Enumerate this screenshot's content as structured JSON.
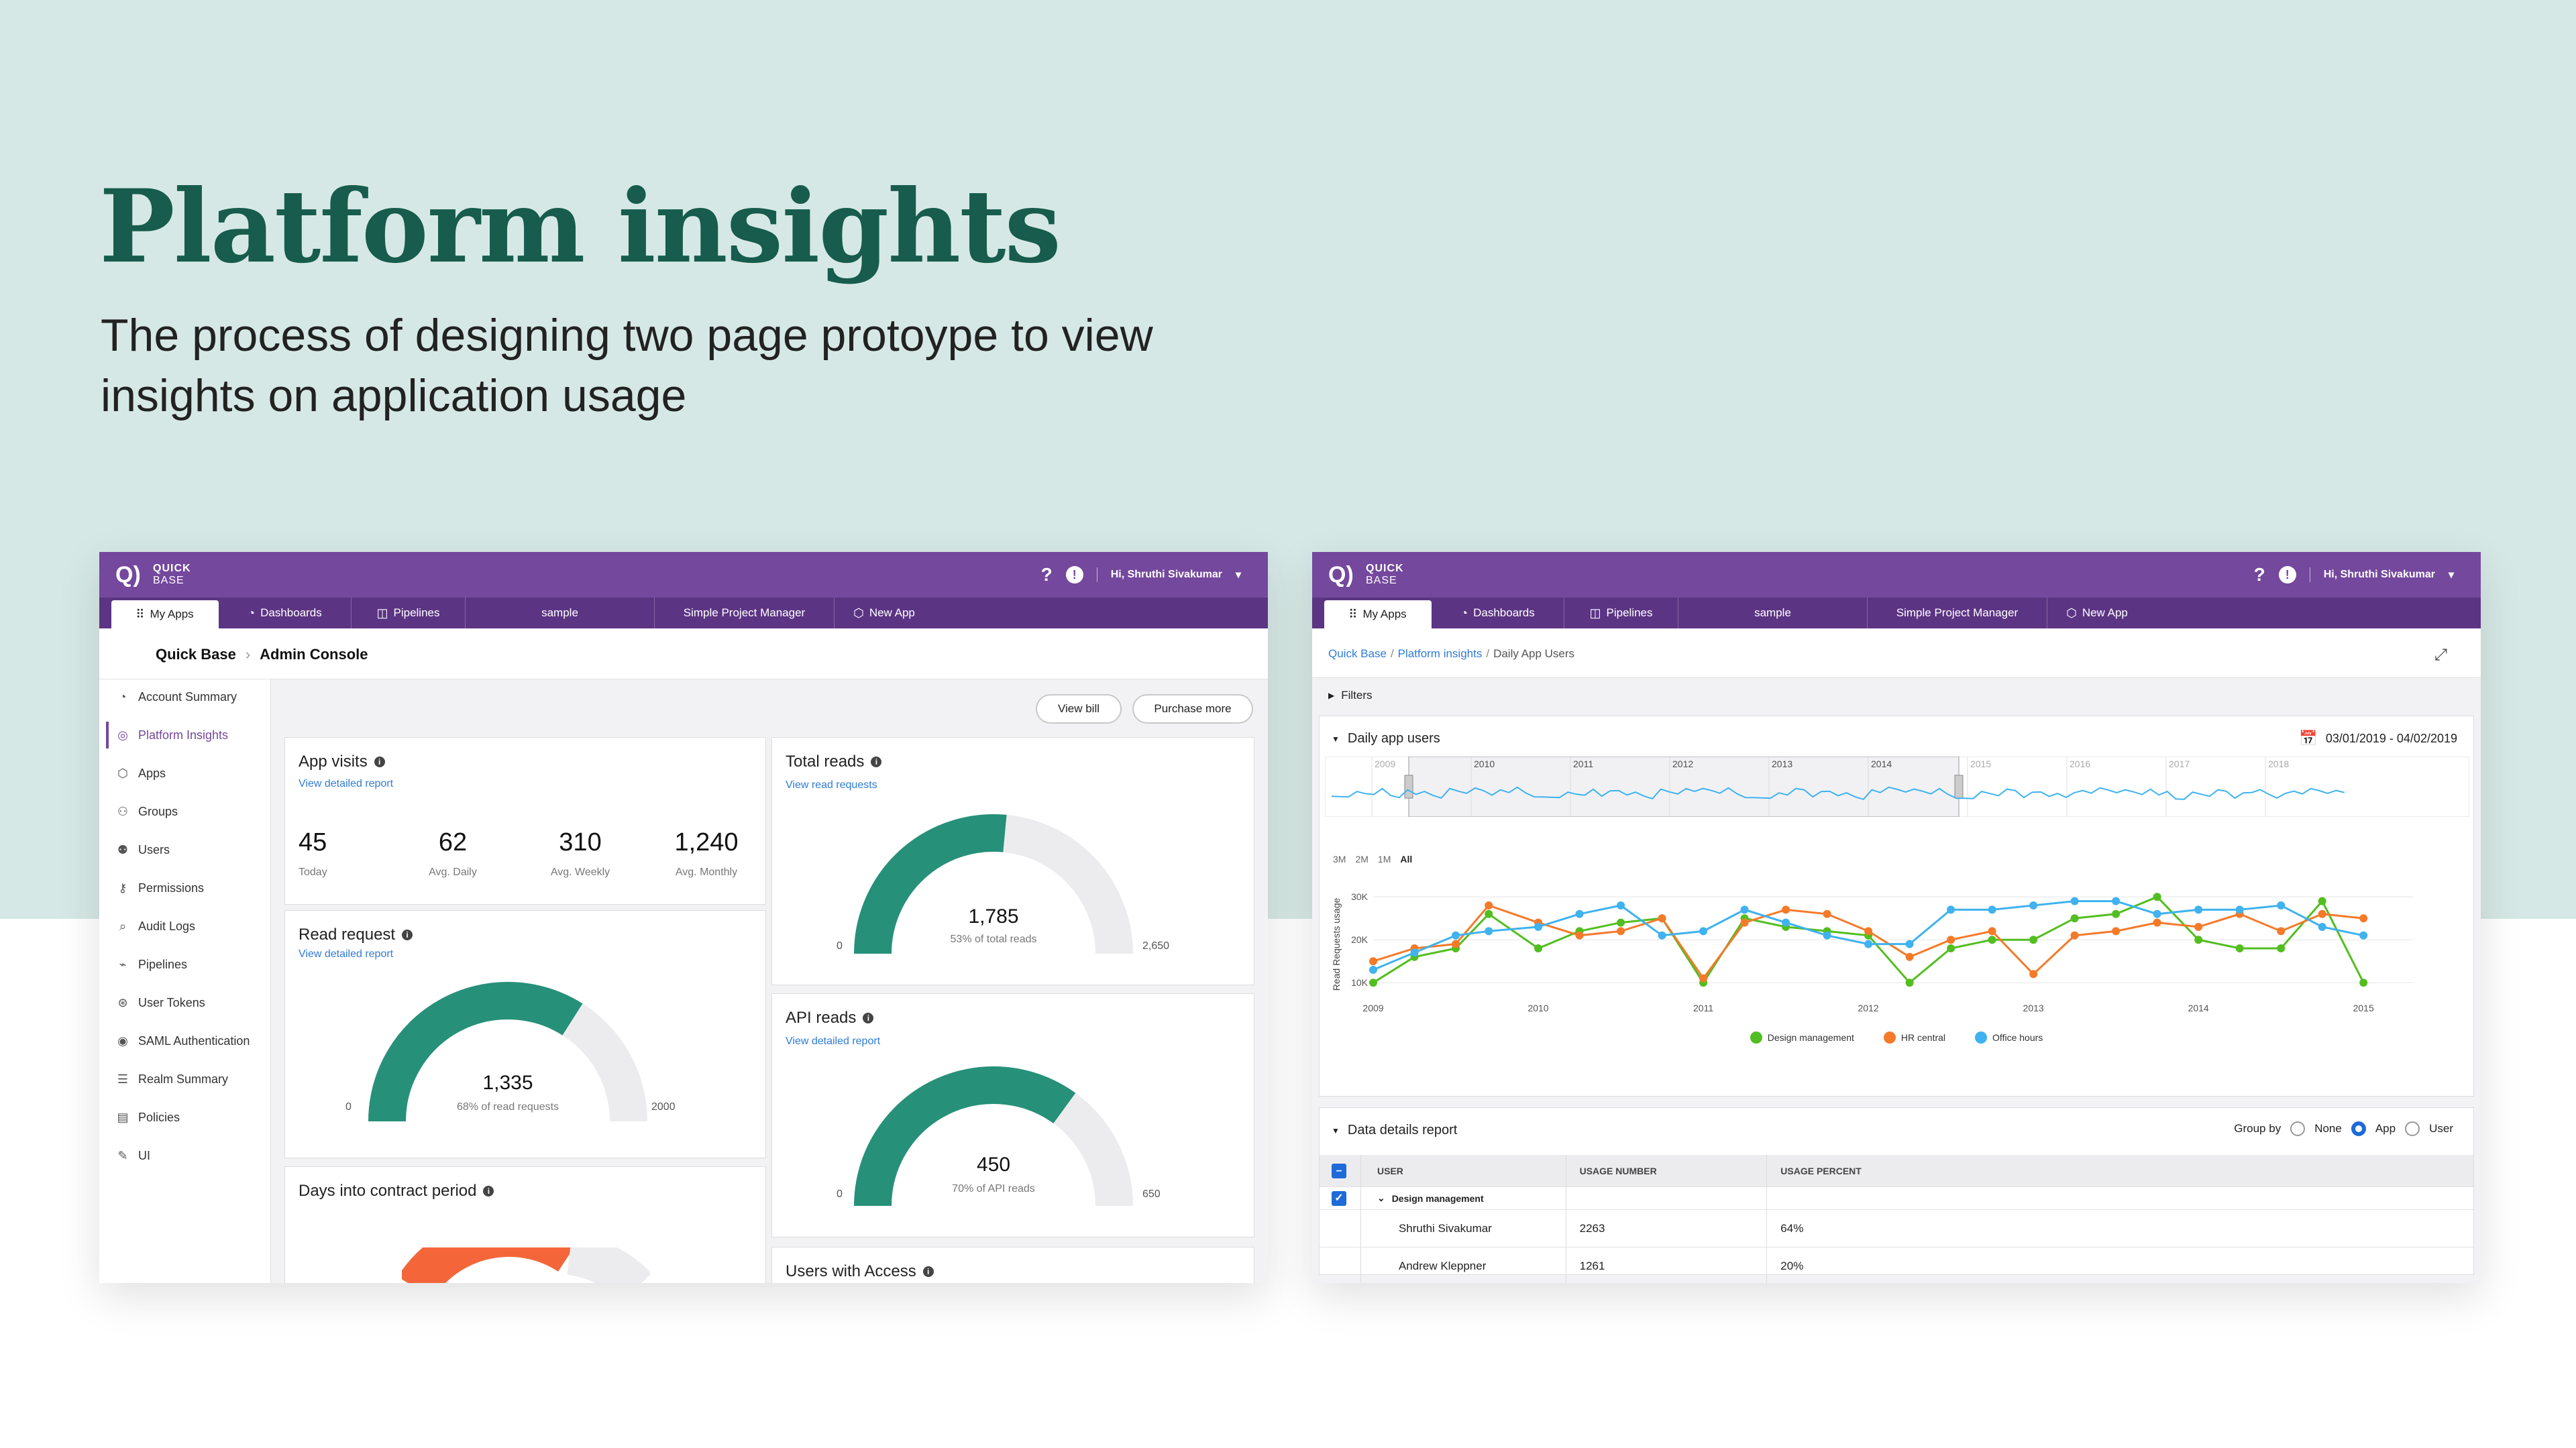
{
  "hero": {
    "title": "Platform insights",
    "subtitle": "The process of designing two page protoype to view insights on application usage"
  },
  "shared": {
    "logo_line1": "QUICK",
    "logo_line2": "BASE",
    "help_icon": "?",
    "alert_icon": "!",
    "user_greeting": "Hi, Shruthi Sivakumar",
    "tabs": [
      {
        "label": "My Apps",
        "icon": "grid-icon"
      },
      {
        "label": "Dashboards",
        "icon": "dashboard-icon"
      },
      {
        "label": "Pipelines",
        "icon": "pipelines-icon"
      },
      {
        "label": "sample"
      },
      {
        "label": "Simple Project Manager"
      },
      {
        "label": "New App",
        "icon": "cube-icon"
      }
    ],
    "accent_color": "#74489d",
    "primary_teal": "#279079",
    "gauge_track": "#ececee",
    "orange": "#f4663a"
  },
  "left": {
    "breadcrumb_root": "Quick Base",
    "breadcrumb_current": "Admin Console",
    "sidebar": [
      {
        "label": "Account Summary",
        "icon": "gauge-icon"
      },
      {
        "label": "Platform Insights",
        "icon": "insights-icon",
        "active": true
      },
      {
        "label": "Apps",
        "icon": "cube-icon"
      },
      {
        "label": "Groups",
        "icon": "group-icon"
      },
      {
        "label": "Users",
        "icon": "users-icon"
      },
      {
        "label": "Permissions",
        "icon": "key-icon"
      },
      {
        "label": "Audit Logs",
        "icon": "search-icon"
      },
      {
        "label": "Pipelines",
        "icon": "pipelines-icon"
      },
      {
        "label": "User Tokens",
        "icon": "token-icon"
      },
      {
        "label": "SAML Authentication",
        "icon": "saml-icon"
      },
      {
        "label": "Realm Summary",
        "icon": "list-icon"
      },
      {
        "label": "Policies",
        "icon": "doc-icon"
      },
      {
        "label": "UI",
        "icon": "brush-icon"
      }
    ],
    "buttons": {
      "view_bill": "View bill",
      "purchase_more": "Purchase more"
    },
    "app_visits": {
      "title": "App visits",
      "link": "View detailed report",
      "stats": [
        {
          "value": "45",
          "label": "Today"
        },
        {
          "value": "62",
          "label": "Avg. Daily"
        },
        {
          "value": "310",
          "label": "Avg. Weekly"
        },
        {
          "value": "1,240",
          "label": "Avg. Monthly"
        }
      ]
    },
    "read_request": {
      "title": "Read request",
      "link": "View detailed report",
      "value": "1,335",
      "caption": "68% of read requests",
      "min": "0",
      "max": "2000",
      "fraction": 0.68
    },
    "total_reads": {
      "title": "Total reads",
      "link": "View read requests",
      "value": "1,785",
      "caption": "53% of total reads",
      "min": "0",
      "max": "2,650",
      "fraction": 0.53
    },
    "api_reads": {
      "title": "API reads",
      "link": "View detailed report",
      "value": "450",
      "caption": "70% of API reads",
      "min": "0",
      "max": "650",
      "fraction": 0.7
    },
    "days_contract": {
      "title": "Days into contract period"
    },
    "users_access": {
      "title": "Users with Access"
    }
  },
  "right": {
    "breadcrumb": [
      "Quick Base",
      "Platform insights",
      "Daily App Users"
    ],
    "filters_label": "Filters",
    "panel_title": "Daily app users",
    "date_range": "03/01/2019 - 04/02/2019",
    "navigator_years": [
      "2009",
      "2010",
      "2011",
      "2012",
      "2013",
      "2014",
      "2015",
      "2016",
      "2017",
      "2018"
    ],
    "range_buttons": [
      "3M",
      "2M",
      "1M",
      "All"
    ],
    "report": {
      "title": "Data details report",
      "group_by_label": "Group by",
      "group_options": [
        "None",
        "App",
        "User"
      ],
      "selected_group": "App",
      "columns": [
        "User",
        "Usage number",
        "Usage percent"
      ],
      "group_row": "Design management",
      "rows": [
        {
          "user": "Shruthi Sivakumar",
          "number": "2263",
          "percent": "64%"
        },
        {
          "user": "Andrew Kleppner",
          "number": "1261",
          "percent": "20%"
        }
      ]
    }
  },
  "chart_data": {
    "type": "line",
    "title": "",
    "xlabel": "",
    "ylabel": "Read Requests usage",
    "x_ticks": [
      "2009",
      "2010",
      "2011",
      "2012",
      "2013",
      "2014",
      "2015"
    ],
    "y_ticks": [
      "10K",
      "20K",
      "30K"
    ],
    "ylim": [
      8000,
      33000
    ],
    "xlim": [
      2009,
      2015.3
    ],
    "grid": true,
    "legend_position": "bottom",
    "series": [
      {
        "name": "Design management",
        "color": "#52be1f",
        "x": [
          2009,
          2009.25,
          2009.5,
          2009.7,
          2010,
          2010.25,
          2010.5,
          2010.75,
          2011,
          2011.25,
          2011.5,
          2011.75,
          2012,
          2012.25,
          2012.5,
          2012.75,
          2013,
          2013.25,
          2013.5,
          2013.75,
          2014,
          2014.25,
          2014.5,
          2014.75,
          2015
        ],
        "y": [
          10000,
          16000,
          18000,
          26000,
          18000,
          22000,
          24000,
          25000,
          10000,
          25000,
          23000,
          22000,
          21000,
          10000,
          18000,
          20000,
          20000,
          25000,
          26000,
          30000,
          20000,
          18000,
          18000,
          29000,
          10000
        ]
      },
      {
        "name": "HR central",
        "color": "#f47a29",
        "x": [
          2009,
          2009.25,
          2009.5,
          2009.7,
          2010,
          2010.25,
          2010.5,
          2010.75,
          2011,
          2011.25,
          2011.5,
          2011.75,
          2012,
          2012.25,
          2012.5,
          2012.75,
          2013,
          2013.25,
          2013.5,
          2013.75,
          2014,
          2014.25,
          2014.5,
          2014.75,
          2015
        ],
        "y": [
          15000,
          18000,
          19000,
          28000,
          24000,
          21000,
          22000,
          25000,
          11000,
          24000,
          27000,
          26000,
          22000,
          16000,
          20000,
          22000,
          12000,
          21000,
          22000,
          24000,
          23000,
          26000,
          22000,
          26000,
          25000
        ]
      },
      {
        "name": "Office hours",
        "color": "#3fb2ef",
        "x": [
          2009,
          2009.25,
          2009.5,
          2009.7,
          2010,
          2010.25,
          2010.5,
          2010.75,
          2011,
          2011.25,
          2011.5,
          2011.75,
          2012,
          2012.25,
          2012.5,
          2012.75,
          2013,
          2013.25,
          2013.5,
          2013.75,
          2014,
          2014.25,
          2014.5,
          2014.75,
          2015
        ],
        "y": [
          13000,
          17000,
          21000,
          22000,
          23000,
          26000,
          28000,
          21000,
          22000,
          27000,
          24000,
          21000,
          19000,
          19000,
          27000,
          27000,
          28000,
          29000,
          29000,
          26000,
          27000,
          27000,
          28000,
          23000,
          21000
        ]
      }
    ]
  }
}
